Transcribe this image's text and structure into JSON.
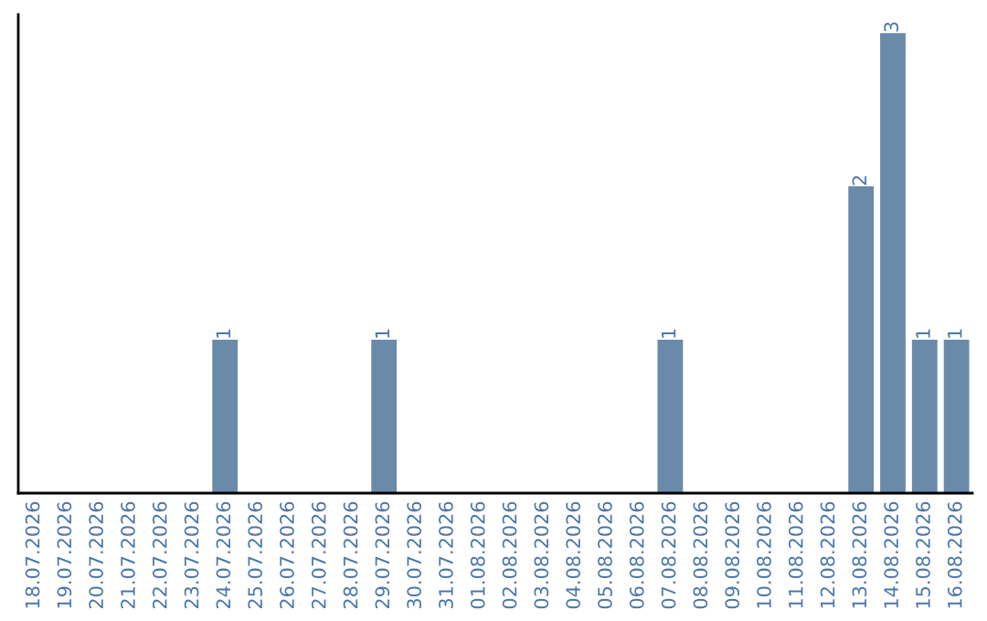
{
  "chart_data": {
    "type": "bar",
    "categories": [
      "18.07.2026",
      "19.07.2026",
      "20.07.2026",
      "21.07.2026",
      "22.07.2026",
      "23.07.2026",
      "24.07.2026",
      "25.07.2026",
      "26.07.2026",
      "27.07.2026",
      "28.07.2026",
      "29.07.2026",
      "30.07.2026",
      "31.07.2026",
      "01.08.2026",
      "02.08.2026",
      "03.08.2026",
      "04.08.2026",
      "05.08.2026",
      "06.08.2026",
      "07.08.2026",
      "08.08.2026",
      "09.08.2026",
      "10.08.2026",
      "11.08.2026",
      "12.08.2026",
      "13.08.2026",
      "14.08.2026",
      "15.08.2026",
      "16.08.2026"
    ],
    "values": [
      0,
      0,
      0,
      0,
      0,
      0,
      1,
      0,
      0,
      0,
      0,
      1,
      0,
      0,
      0,
      0,
      0,
      0,
      0,
      0,
      1,
      0,
      0,
      0,
      0,
      0,
      2,
      3,
      1,
      1
    ],
    "value_labels": [
      null,
      null,
      null,
      null,
      null,
      null,
      "1",
      null,
      null,
      null,
      null,
      "1",
      null,
      null,
      null,
      null,
      null,
      null,
      null,
      null,
      "1",
      null,
      null,
      null,
      null,
      null,
      "2",
      "3",
      "1",
      "1"
    ],
    "color": "#6a8aaa",
    "ylim": [
      0,
      3.12
    ],
    "tick_labels": "x",
    "grid": false
  }
}
